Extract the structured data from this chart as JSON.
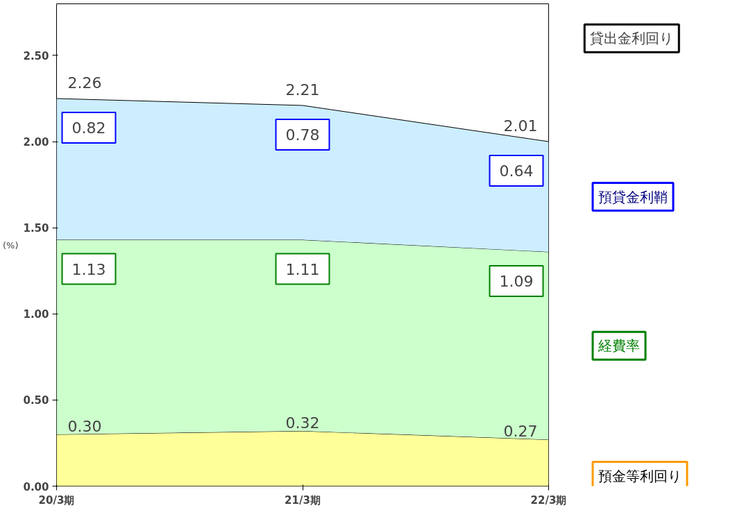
{
  "chart_data": {
    "type": "area",
    "stacked": true,
    "ylabel": "(%)",
    "categories": [
      "20/3期",
      "21/3期",
      "22/3期"
    ],
    "series": [
      {
        "name": "預金等利回り",
        "color": "#ffff99",
        "values": [
          0.3,
          0.32,
          0.27
        ],
        "value_labels": [
          "0.30",
          "0.32",
          "0.27"
        ]
      },
      {
        "name": "経費率",
        "color": "#ccffcc",
        "values": [
          1.13,
          1.11,
          1.09
        ],
        "value_labels": [
          "1.13",
          "1.11",
          "1.09"
        ]
      },
      {
        "name": "預貸金利鞘",
        "color": "#cceeff",
        "values": [
          0.82,
          0.78,
          0.64
        ],
        "value_labels": [
          "0.82",
          "0.78",
          "0.64"
        ]
      }
    ],
    "totals": [
      "2.26",
      "2.21",
      "2.01"
    ],
    "annotations": [
      "貸出金利回り"
    ],
    "ylim": [
      0,
      2.8
    ],
    "yticks": [
      {
        "value": 0,
        "label": "0.00"
      },
      {
        "value": 0.5,
        "label": "0.50"
      },
      {
        "value": 1,
        "label": "1.00"
      },
      {
        "value": 1.5,
        "label": "1.50"
      },
      {
        "value": 2,
        "label": "2.00"
      },
      {
        "value": 2.5,
        "label": "2.50"
      }
    ],
    "grid": false
  }
}
